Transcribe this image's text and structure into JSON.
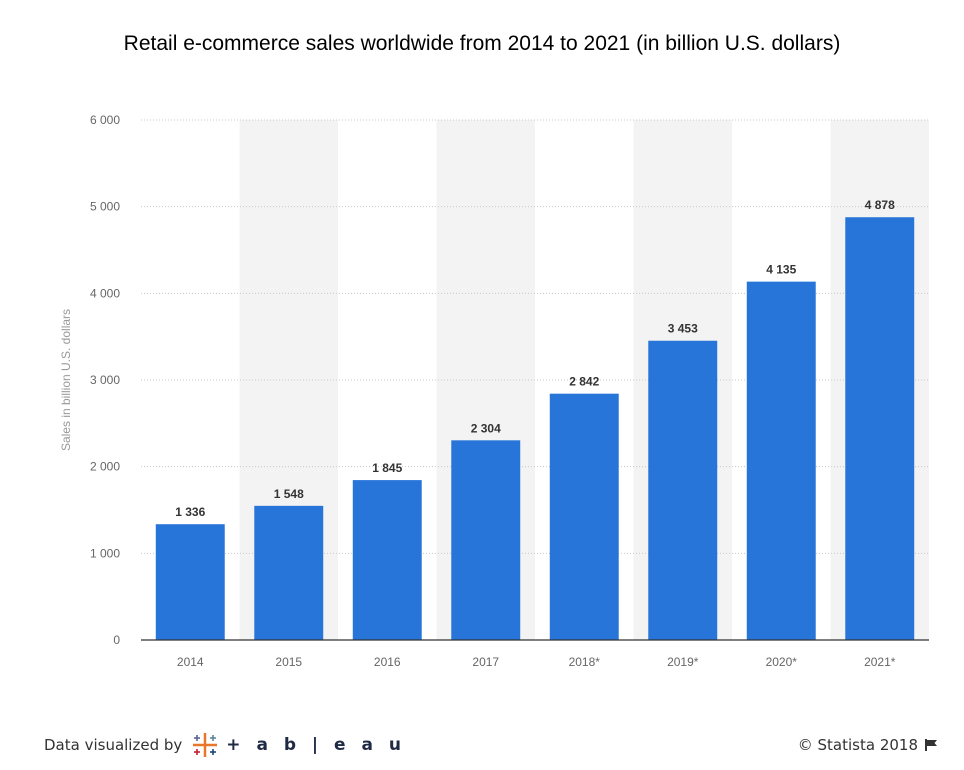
{
  "chart_data": {
    "type": "bar",
    "title": "Retail e-commerce sales worldwide from 2014 to 2021 (in billion U.S. dollars)",
    "xlabel": "",
    "ylabel": "Sales in billion U.S. dollars",
    "categories": [
      "2014",
      "2015",
      "2016",
      "2017",
      "2018*",
      "2019*",
      "2020*",
      "2021*"
    ],
    "values": [
      1336,
      1548,
      1845,
      2304,
      2842,
      3453,
      4135,
      4878
    ],
    "value_labels": [
      "1 336",
      "1 548",
      "1 845",
      "2 304",
      "2 842",
      "3 453",
      "4 135",
      "4 878"
    ],
    "ylim": [
      0,
      6000
    ],
    "yticks": [
      0,
      1000,
      2000,
      3000,
      4000,
      5000,
      6000
    ],
    "ytick_labels": [
      "0",
      "1 000",
      "2 000",
      "3 000",
      "4 000",
      "5 000",
      "6 000"
    ],
    "grid": true,
    "bar_color": "#2775d9",
    "band_color": "#f3f3f3"
  },
  "footer": {
    "visualized_by": "Data visualized by",
    "tableau_wordmark": "+ a b | e a u",
    "copyright": "© Statista 2018"
  }
}
